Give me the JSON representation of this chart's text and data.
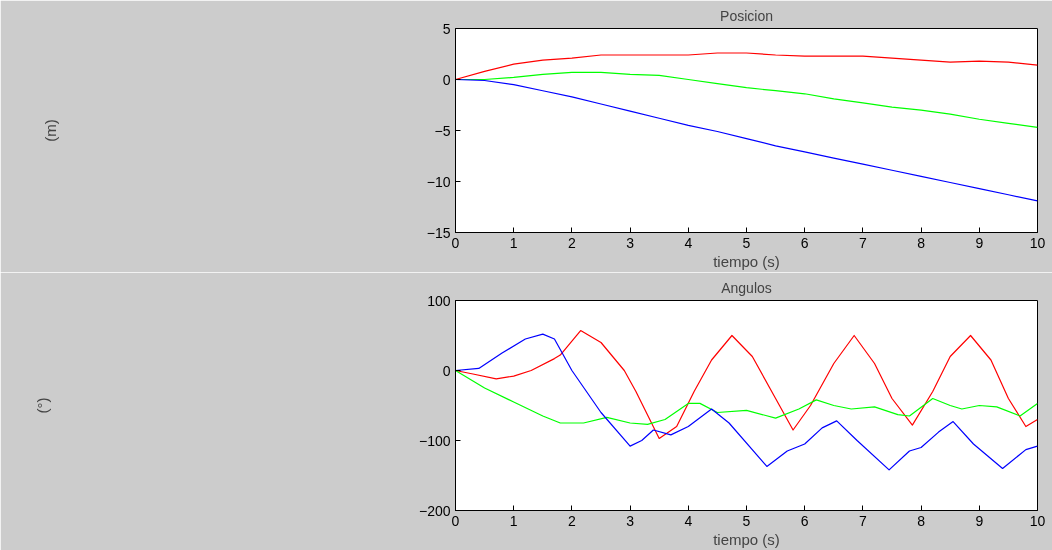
{
  "chart_data": [
    {
      "type": "line",
      "title": "Posicion",
      "xlabel": "tiempo (s)",
      "ylabel": "(m)",
      "xlim": [
        0,
        10
      ],
      "xticks": [
        0,
        1,
        2,
        3,
        4,
        5,
        6,
        7,
        8,
        9,
        10
      ],
      "ylim": [
        -15,
        5
      ],
      "yticks": [
        -15,
        -10,
        -5,
        0,
        5
      ],
      "grid": false,
      "x": [
        0,
        0.5,
        1,
        1.5,
        2,
        2.5,
        3,
        3.5,
        4,
        4.5,
        5,
        5.5,
        6,
        6.5,
        7,
        7.5,
        8,
        8.5,
        9,
        9.5,
        10
      ],
      "series": [
        {
          "color": "#ff0000",
          "values": [
            0,
            0.8,
            1.5,
            1.9,
            2.1,
            2.4,
            2.4,
            2.4,
            2.4,
            2.6,
            2.6,
            2.4,
            2.3,
            2.3,
            2.3,
            2.1,
            1.9,
            1.7,
            1.8,
            1.7,
            1.4
          ]
        },
        {
          "color": "#00ff00",
          "values": [
            0,
            0,
            0.2,
            0.5,
            0.7,
            0.7,
            0.5,
            0.4,
            0,
            -0.4,
            -0.8,
            -1.1,
            -1.4,
            -1.9,
            -2.3,
            -2.7,
            -3.0,
            -3.4,
            -3.9,
            -4.3,
            -4.7
          ]
        },
        {
          "color": "#0000ff",
          "values": [
            0,
            -0.1,
            -0.5,
            -1.1,
            -1.7,
            -2.4,
            -3.1,
            -3.8,
            -4.5,
            -5.1,
            -5.8,
            -6.5,
            -7.1,
            -7.7,
            -8.3,
            -8.9,
            -9.5,
            -10.1,
            -10.7,
            -11.3,
            -11.9
          ]
        }
      ]
    },
    {
      "type": "line",
      "title": "Angulos",
      "xlabel": "tiempo (s)",
      "ylabel": "(°)",
      "xlim": [
        0,
        10
      ],
      "xticks": [
        0,
        1,
        2,
        3,
        4,
        5,
        6,
        7,
        8,
        9,
        10
      ],
      "ylim": [
        -200,
        100
      ],
      "yticks": [
        -200,
        -100,
        0,
        100
      ],
      "grid": false,
      "series": [
        {
          "color": "#ff0000",
          "x": [
            0,
            0.3,
            0.7,
            1,
            1.3,
            1.7,
            1.8,
            2.15,
            2.5,
            2.9,
            3.1,
            3.5,
            3.8,
            4.1,
            4.4,
            4.75,
            5.1,
            5.5,
            5.8,
            6.1,
            6.5,
            6.85,
            7.2,
            7.5,
            7.85,
            8.2,
            8.5,
            8.85,
            9.2,
            9.5,
            9.8,
            10
          ],
          "values": [
            0,
            -5,
            -12,
            -8,
            0,
            17,
            22,
            57,
            40,
            0,
            -30,
            -97,
            -80,
            -30,
            15,
            50,
            20,
            -40,
            -85,
            -50,
            10,
            50,
            10,
            -40,
            -78,
            -30,
            20,
            50,
            15,
            -40,
            -80,
            -70
          ]
        },
        {
          "color": "#00ff00",
          "x": [
            0,
            0.5,
            1,
            1.5,
            1.8,
            2.2,
            2.6,
            3,
            3.3,
            3.6,
            4,
            4.2,
            4.5,
            5,
            5.5,
            5.9,
            6.2,
            6.5,
            6.8,
            7.2,
            7.6,
            7.8,
            8.2,
            8.5,
            8.7,
            9,
            9.3,
            9.7,
            10
          ],
          "values": [
            0,
            -25,
            -45,
            -65,
            -75,
            -75,
            -67,
            -75,
            -77,
            -70,
            -47,
            -47,
            -60,
            -57,
            -68,
            -55,
            -42,
            -50,
            -55,
            -52,
            -63,
            -65,
            -40,
            -50,
            -55,
            -50,
            -52,
            -65,
            -47
          ]
        },
        {
          "color": "#0000ff",
          "x": [
            0,
            0.4,
            0.8,
            1.2,
            1.5,
            1.7,
            2,
            2.5,
            3,
            3.2,
            3.4,
            3.7,
            4,
            4.4,
            4.7,
            5.35,
            5.7,
            6,
            6.3,
            6.55,
            6.9,
            7.45,
            7.8,
            8,
            8.3,
            8.55,
            8.9,
            9.4,
            9.8,
            10
          ],
          "values": [
            0,
            3,
            25,
            45,
            52,
            45,
            0,
            -60,
            -108,
            -100,
            -85,
            -92,
            -80,
            -55,
            -75,
            -137,
            -115,
            -105,
            -82,
            -72,
            -100,
            -142,
            -115,
            -110,
            -88,
            -73,
            -105,
            -140,
            -113,
            -108
          ]
        }
      ]
    }
  ]
}
